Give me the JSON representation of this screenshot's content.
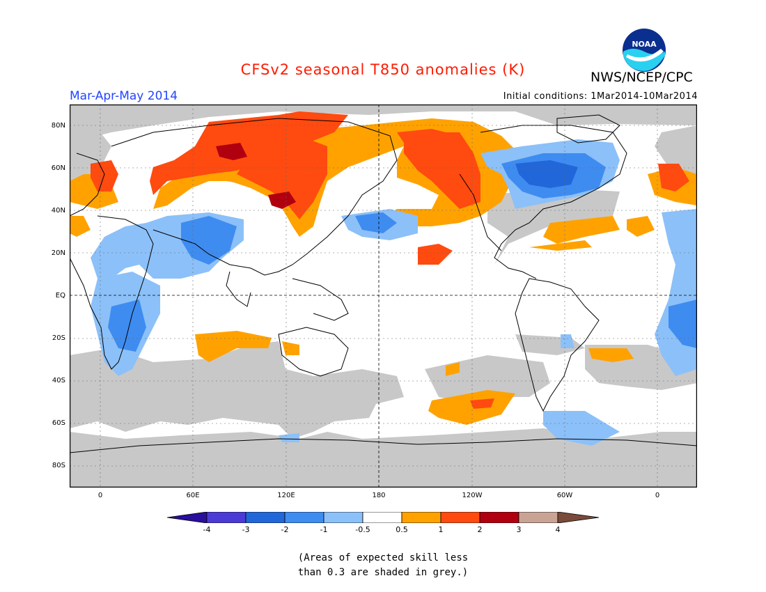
{
  "title": "CFSv2 seasonal T850 anomalies (K)",
  "org": "NWS/NCEP/CPC",
  "logo_text": "NOAA",
  "season": "Mar-Apr-May 2014",
  "init_conditions": "Initial conditions: 1Mar2014-10Mar2014",
  "lat_labels": [
    "80N",
    "60N",
    "40N",
    "20N",
    "EQ",
    "20S",
    "40S",
    "60S",
    "80S"
  ],
  "lon_labels": [
    "0",
    "60E",
    "120E",
    "180",
    "120W",
    "60W",
    "0"
  ],
  "colorbar": {
    "labels": [
      "-4",
      "-3",
      "-2",
      "-1",
      "-0.5",
      "0.5",
      "1",
      "2",
      "3",
      "4"
    ],
    "colors": [
      "#2a0f9e",
      "#4b3bd6",
      "#2167d9",
      "#3e8cf0",
      "#8cc0f8",
      "#ffffff",
      "#ffa200",
      "#ff4a10",
      "#b00010",
      "#c9a495",
      "#7a4a3a"
    ]
  },
  "note_line1": "(Areas of expected skill less",
  "note_line2": "than 0.3 are shaded in grey.)",
  "colors": {
    "title": "#ff1a00",
    "season": "#2244ff",
    "grey_skill": "#c8c8c8",
    "frame": "#000000"
  }
}
